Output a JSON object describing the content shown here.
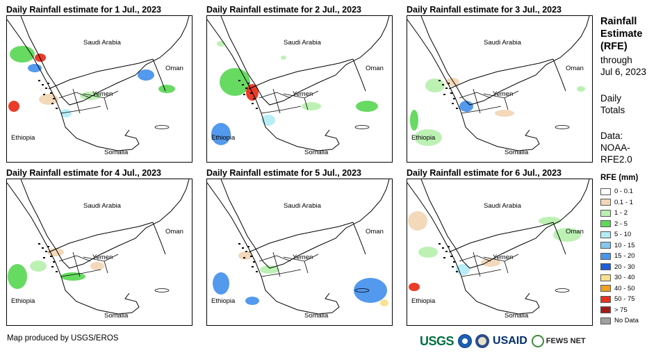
{
  "panels": [
    {
      "title": "Daily Rainfall estimate for 1 Jul., 2023"
    },
    {
      "title": "Daily Rainfall estimate for 2 Jul., 2023"
    },
    {
      "title": "Daily Rainfall estimate for 3 Jul., 2023"
    },
    {
      "title": "Daily Rainfall estimate for 4 Jul., 2023"
    },
    {
      "title": "Daily Rainfall estimate for 5 Jul., 2023"
    },
    {
      "title": "Daily Rainfall estimate for 6 Jul., 2023"
    }
  ],
  "map_labels": {
    "saudi_arabia": "Saudi Arabia",
    "oman": "Oman",
    "yemen": "Yemen",
    "ethiopia": "Ethiopia",
    "somalia": "Somalia"
  },
  "side": {
    "title_1": "Rainfall",
    "title_2": "Estimate",
    "title_3": "(RFE)",
    "sub_1": "through",
    "sub_2": "Jul 6, 2023",
    "totals_1": "Daily",
    "totals_2": "Totals",
    "data_1": "Data:",
    "data_2": "NOAA-",
    "data_3": "RFE2.0"
  },
  "legend": {
    "title": "RFE (mm)",
    "items": [
      {
        "label": "0 - 0.1",
        "color": "#ffffff"
      },
      {
        "label": "0.1 - 1",
        "color": "#f2d6b6"
      },
      {
        "label": "1 - 2",
        "color": "#b9f0b0"
      },
      {
        "label": "2 - 5",
        "color": "#5fd85a"
      },
      {
        "label": "5 - 10",
        "color": "#b4ecf5"
      },
      {
        "label": "10 - 15",
        "color": "#86c6f0"
      },
      {
        "label": "15 - 20",
        "color": "#4a94ec"
      },
      {
        "label": "20 - 30",
        "color": "#1f5ed8"
      },
      {
        "label": "30 - 40",
        "color": "#f8e08c"
      },
      {
        "label": "40 - 50",
        "color": "#f2a020"
      },
      {
        "label": "50 - 75",
        "color": "#e8321e"
      },
      {
        "label": "> 75",
        "color": "#a31c1c"
      },
      {
        "label": "No Data",
        "color": "#a0a0a0"
      }
    ]
  },
  "credit": "Map produced by USGS/EROS",
  "logos": {
    "usgs": "USGS",
    "usaid": "USAID",
    "fews": "FEWS NET"
  }
}
